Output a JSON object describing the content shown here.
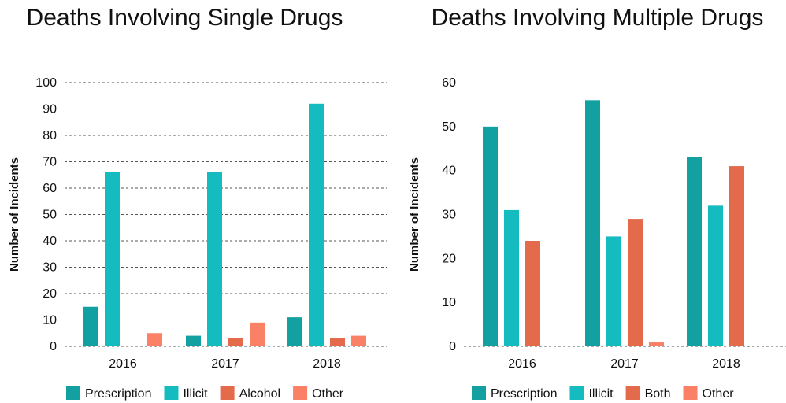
{
  "chart_data": [
    {
      "type": "bar",
      "title": "Deaths Involving Single Drugs",
      "xlabel": "",
      "ylabel": "Number of Incidents",
      "ylim": [
        0,
        100
      ],
      "yticks": [
        0,
        10,
        20,
        30,
        40,
        50,
        60,
        70,
        80,
        90,
        100
      ],
      "grid": true,
      "legend": "bottom",
      "categories": [
        "2016",
        "2017",
        "2018"
      ],
      "series": [
        {
          "name": "Prescription",
          "color": "#12a0a0",
          "values": [
            15,
            4,
            11
          ]
        },
        {
          "name": "Illicit",
          "color": "#14bcc0",
          "values": [
            66,
            66,
            92
          ]
        },
        {
          "name": "Alcohol",
          "color": "#e46a4c",
          "values": [
            0,
            3,
            3
          ]
        },
        {
          "name": "Other",
          "color": "#fb8166",
          "values": [
            5,
            9,
            4
          ]
        }
      ]
    },
    {
      "type": "bar",
      "title": "Deaths Involving Multiple Drugs",
      "xlabel": "",
      "ylabel": "Number of Incidents",
      "ylim": [
        0,
        60
      ],
      "yticks": [
        0,
        10,
        20,
        30,
        40,
        50,
        60
      ],
      "grid": false,
      "legend": "bottom",
      "categories": [
        "2016",
        "2017",
        "2018"
      ],
      "series": [
        {
          "name": "Prescription",
          "color": "#12a0a0",
          "values": [
            50,
            56,
            43
          ]
        },
        {
          "name": "Illicit",
          "color": "#14bcc0",
          "values": [
            31,
            25,
            32
          ]
        },
        {
          "name": "Both",
          "color": "#e46a4c",
          "values": [
            24,
            29,
            41
          ]
        },
        {
          "name": "Other",
          "color": "#fb8166",
          "values": [
            0,
            1,
            0
          ]
        }
      ]
    }
  ]
}
